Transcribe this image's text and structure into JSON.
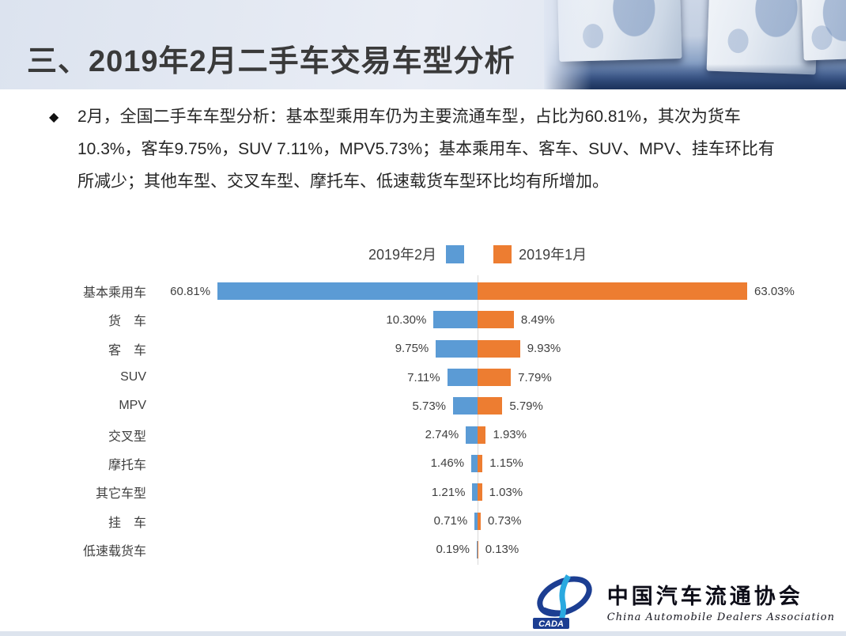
{
  "slide": {
    "title": "三、2019年2月二手车交易车型分析"
  },
  "bullet": {
    "marker": "◆",
    "lines": [
      "2月，全国二手车车型分析：基本型乘用车仍为主要流通车型，占比为60.81%，其次为货车",
      "10.3%，客车9.75%，SUV 7.11%，MPV5.73%；基本乘用车、客车、SUV、MPV、挂车环比有",
      "所减少；其他车型、交叉车型、摩托车、低速载货车型环比均有所增加。"
    ]
  },
  "chart_data": {
    "type": "bar",
    "variant": "horizontal-diverging",
    "title": "",
    "xlabel": "",
    "ylabel": "",
    "legend_position": "top-center",
    "grid": false,
    "axis": {
      "center_line": true,
      "color": "#D9D9D9"
    },
    "xmax_percent": 65,
    "categories": [
      "基本乘用车",
      "货　车",
      "客　车",
      "SUV",
      "MPV",
      "交叉型",
      "摩托车",
      "其它车型",
      "挂　车",
      "低速载货车"
    ],
    "series": [
      {
        "name": "2019年2月",
        "color": "#5B9BD5",
        "side": "left",
        "values": [
          60.81,
          10.3,
          9.75,
          7.11,
          5.73,
          2.74,
          1.46,
          1.21,
          0.71,
          0.19
        ],
        "labels": [
          "60.81%",
          "10.30%",
          "9.75%",
          "7.11%",
          "5.73%",
          "2.74%",
          "1.46%",
          "1.21%",
          "0.71%",
          "0.19%"
        ]
      },
      {
        "name": "2019年1月",
        "color": "#ED7D31",
        "side": "right",
        "values": [
          63.03,
          8.49,
          9.93,
          7.79,
          5.79,
          1.93,
          1.15,
          1.03,
          0.73,
          0.13
        ],
        "labels": [
          "63.03%",
          "8.49%",
          "9.93%",
          "7.79%",
          "5.79%",
          "1.93%",
          "1.15%",
          "1.03%",
          "0.73%",
          "0.13%"
        ]
      }
    ]
  },
  "logo": {
    "acronym": "CADA",
    "name_cn": "中国汽车流通协会",
    "name_en": "China Automobile Dealers Association"
  }
}
